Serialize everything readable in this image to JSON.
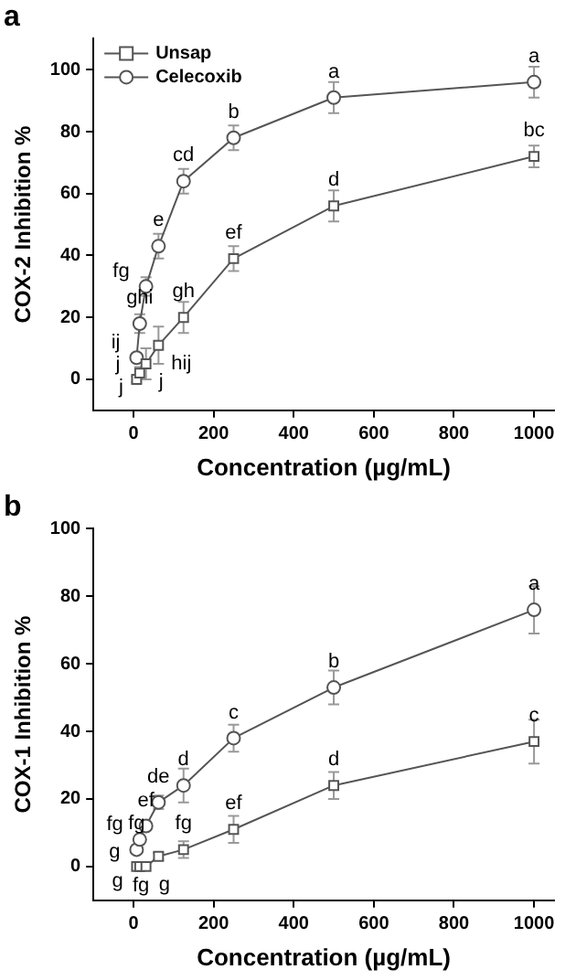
{
  "chart_data": [
    {
      "type": "line",
      "title": "a",
      "xlabel": "Concentration (µg/mL)",
      "ylabel": "COX-2 Inhibition %",
      "x": [
        7.8,
        15.6,
        31.25,
        62.5,
        125,
        250,
        500,
        1000
      ],
      "xlim": [
        -100,
        1050
      ],
      "xticks": [
        0,
        200,
        400,
        600,
        800,
        1000
      ],
      "ylim": [
        -10,
        110
      ],
      "yticks": [
        0,
        20,
        40,
        60,
        80,
        100
      ],
      "grid": false,
      "legend": "top left",
      "line_style": "solid",
      "series": [
        {
          "name": "Unsap",
          "color": "#555555",
          "marker": "square",
          "values": [
            0,
            2,
            5,
            11,
            20,
            39,
            56,
            72
          ],
          "errors": [
            1,
            2,
            5,
            6,
            5,
            4,
            5,
            3.5
          ]
        },
        {
          "name": "Celecoxib",
          "color": "#555555",
          "marker": "circle",
          "values": [
            7,
            18,
            30,
            43,
            64,
            78,
            91,
            96
          ],
          "errors": [
            1,
            3,
            3,
            4,
            4,
            4,
            5,
            5
          ]
        }
      ],
      "annotations": [
        {
          "text": "j",
          "x": 7.8,
          "y": 0
        },
        {
          "text": "j",
          "x": 15.6,
          "y": 2
        },
        {
          "text": "j",
          "x": 31.25,
          "y": 5
        },
        {
          "text": "hij",
          "x": 62.5,
          "y": 11
        },
        {
          "text": "gh",
          "x": 125,
          "y": 20
        },
        {
          "text": "ef",
          "x": 250,
          "y": 39
        },
        {
          "text": "d",
          "x": 500,
          "y": 56
        },
        {
          "text": "bc",
          "x": 1000,
          "y": 72
        },
        {
          "text": "ij",
          "x": 7.8,
          "y": 7
        },
        {
          "text": "ghi",
          "x": 15.6,
          "y": 18
        },
        {
          "text": "fg",
          "x": 31.25,
          "y": 30
        },
        {
          "text": "e",
          "x": 62.5,
          "y": 43
        },
        {
          "text": "cd",
          "x": 125,
          "y": 64
        },
        {
          "text": "b",
          "x": 250,
          "y": 78
        },
        {
          "text": "a",
          "x": 500,
          "y": 91
        },
        {
          "text": "a",
          "x": 1000,
          "y": 96
        }
      ]
    },
    {
      "type": "line",
      "title": "b",
      "xlabel": "Concentration (µg/mL)",
      "ylabel": "COX-1 Inhibition %",
      "x": [
        7.8,
        15.6,
        31.25,
        62.5,
        125,
        250,
        500,
        1000
      ],
      "xlim": [
        -100,
        1050
      ],
      "xticks": [
        0,
        200,
        400,
        600,
        800,
        1000
      ],
      "ylim": [
        -10,
        100
      ],
      "yticks": [
        0,
        20,
        40,
        60,
        80,
        100
      ],
      "grid": false,
      "line_style": "solid",
      "series": [
        {
          "color": "#555555",
          "marker": "square",
          "values": [
            0,
            0,
            0,
            3,
            5,
            11,
            24,
            37
          ],
          "errors": [
            null,
            null,
            null,
            1,
            2.5,
            4,
            4,
            6.5
          ]
        },
        {
          "color": "#555555",
          "marker": "circle",
          "values": [
            5,
            8,
            12,
            19,
            24,
            38,
            53,
            76
          ],
          "errors": [
            null,
            null,
            null,
            2,
            5,
            4,
            5,
            7
          ]
        }
      ],
      "annotations": [
        {
          "text": "g",
          "x": 7.8,
          "y": 0
        },
        {
          "text": "g",
          "x": 15.6,
          "y": 0
        },
        {
          "text": "g",
          "x": 31.25,
          "y": 0
        },
        {
          "text": "fg",
          "x": 62.5,
          "y": 3
        },
        {
          "text": "fg",
          "x": 125,
          "y": 5
        },
        {
          "text": "ef",
          "x": 250,
          "y": 11
        },
        {
          "text": "d",
          "x": 500,
          "y": 24
        },
        {
          "text": "c",
          "x": 1000,
          "y": 37
        },
        {
          "text": "fg",
          "x": 7.8,
          "y": 5
        },
        {
          "text": "fg",
          "x": 15.6,
          "y": 8
        },
        {
          "text": "ef",
          "x": 31.25,
          "y": 12
        },
        {
          "text": "de",
          "x": 62.5,
          "y": 19
        },
        {
          "text": "d",
          "x": 125,
          "y": 24
        },
        {
          "text": "c",
          "x": 250,
          "y": 38
        },
        {
          "text": "b",
          "x": 500,
          "y": 53
        },
        {
          "text": "a",
          "x": 1000,
          "y": 76
        }
      ]
    }
  ]
}
